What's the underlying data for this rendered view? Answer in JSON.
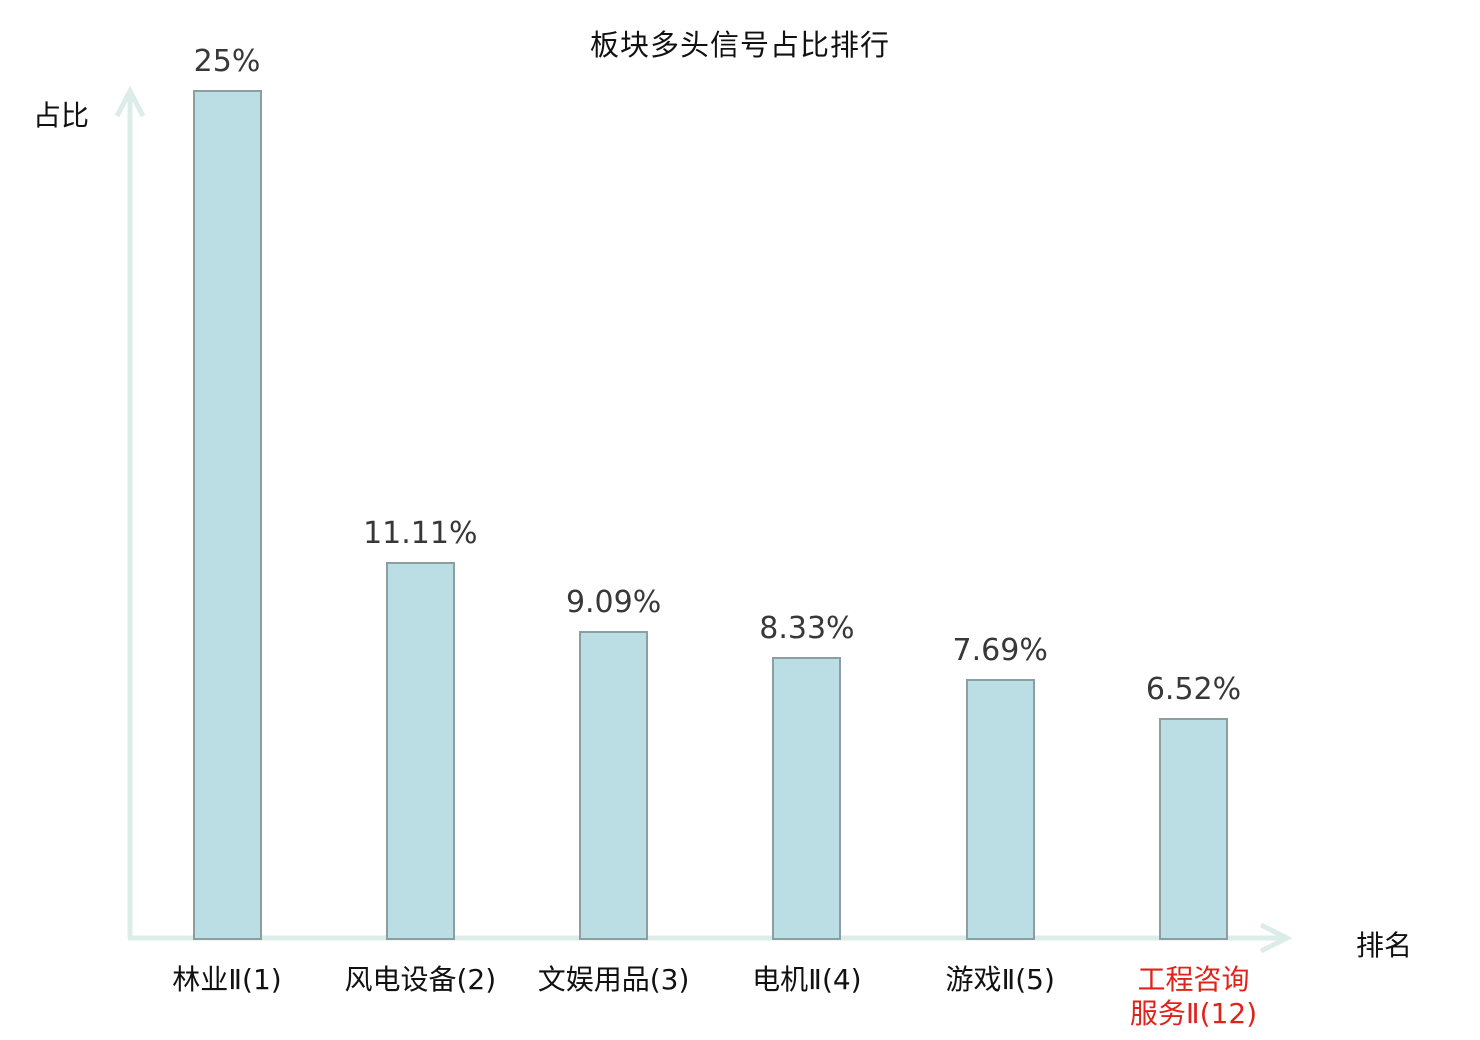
{
  "chart_data": {
    "type": "bar",
    "title": "板块多头信号占比排行",
    "xlabel": "排名",
    "ylabel": "占比",
    "categories": [
      "林业Ⅱ(1)",
      "风电设备(2)",
      "文娱用品(3)",
      "电机Ⅱ(4)",
      "游戏Ⅱ(5)",
      "工程咨询\n服务Ⅱ(12)"
    ],
    "values": [
      25,
      11.11,
      9.09,
      8.33,
      7.69,
      6.52
    ],
    "value_labels": [
      "25%",
      "11.11%",
      "9.09%",
      "8.33%",
      "7.69%",
      "6.52%"
    ],
    "highlight_index": 5,
    "ylim": [
      0,
      25
    ],
    "grid": false,
    "legend": null,
    "colors": {
      "bar_fill": "#badee3",
      "bar_border": "#8d9ea0",
      "axis": "#dcede9",
      "value_label": "#383838",
      "category_label": "#111111",
      "highlight_label": "#e0231a"
    }
  }
}
